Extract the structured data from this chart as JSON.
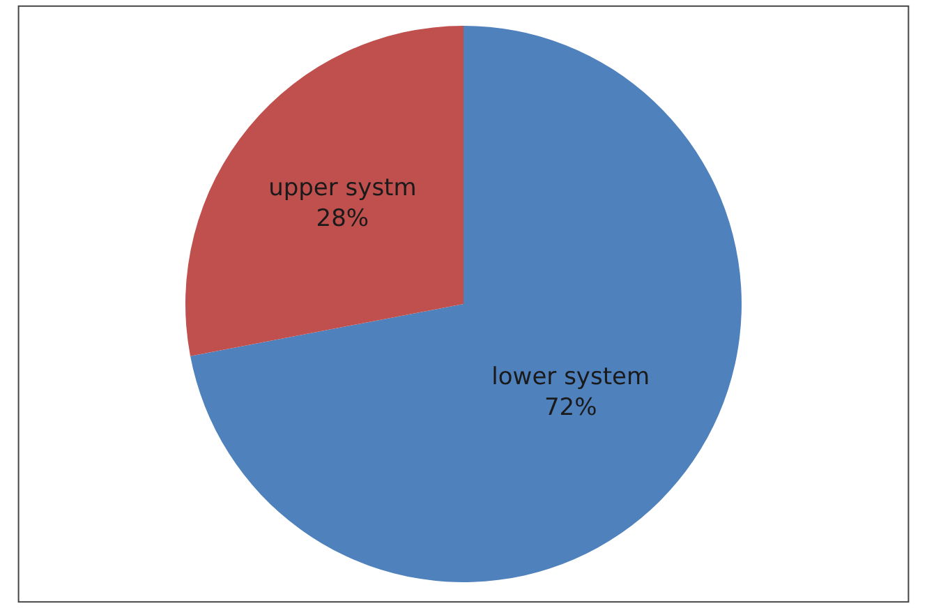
{
  "chart_data": {
    "type": "pie",
    "categories": [
      "lower system",
      "upper systm"
    ],
    "values": [
      72,
      28
    ],
    "colors": [
      "#4f81bd",
      "#c0504d"
    ],
    "value_labels": [
      "72%",
      "28%"
    ],
    "legend": false
  }
}
